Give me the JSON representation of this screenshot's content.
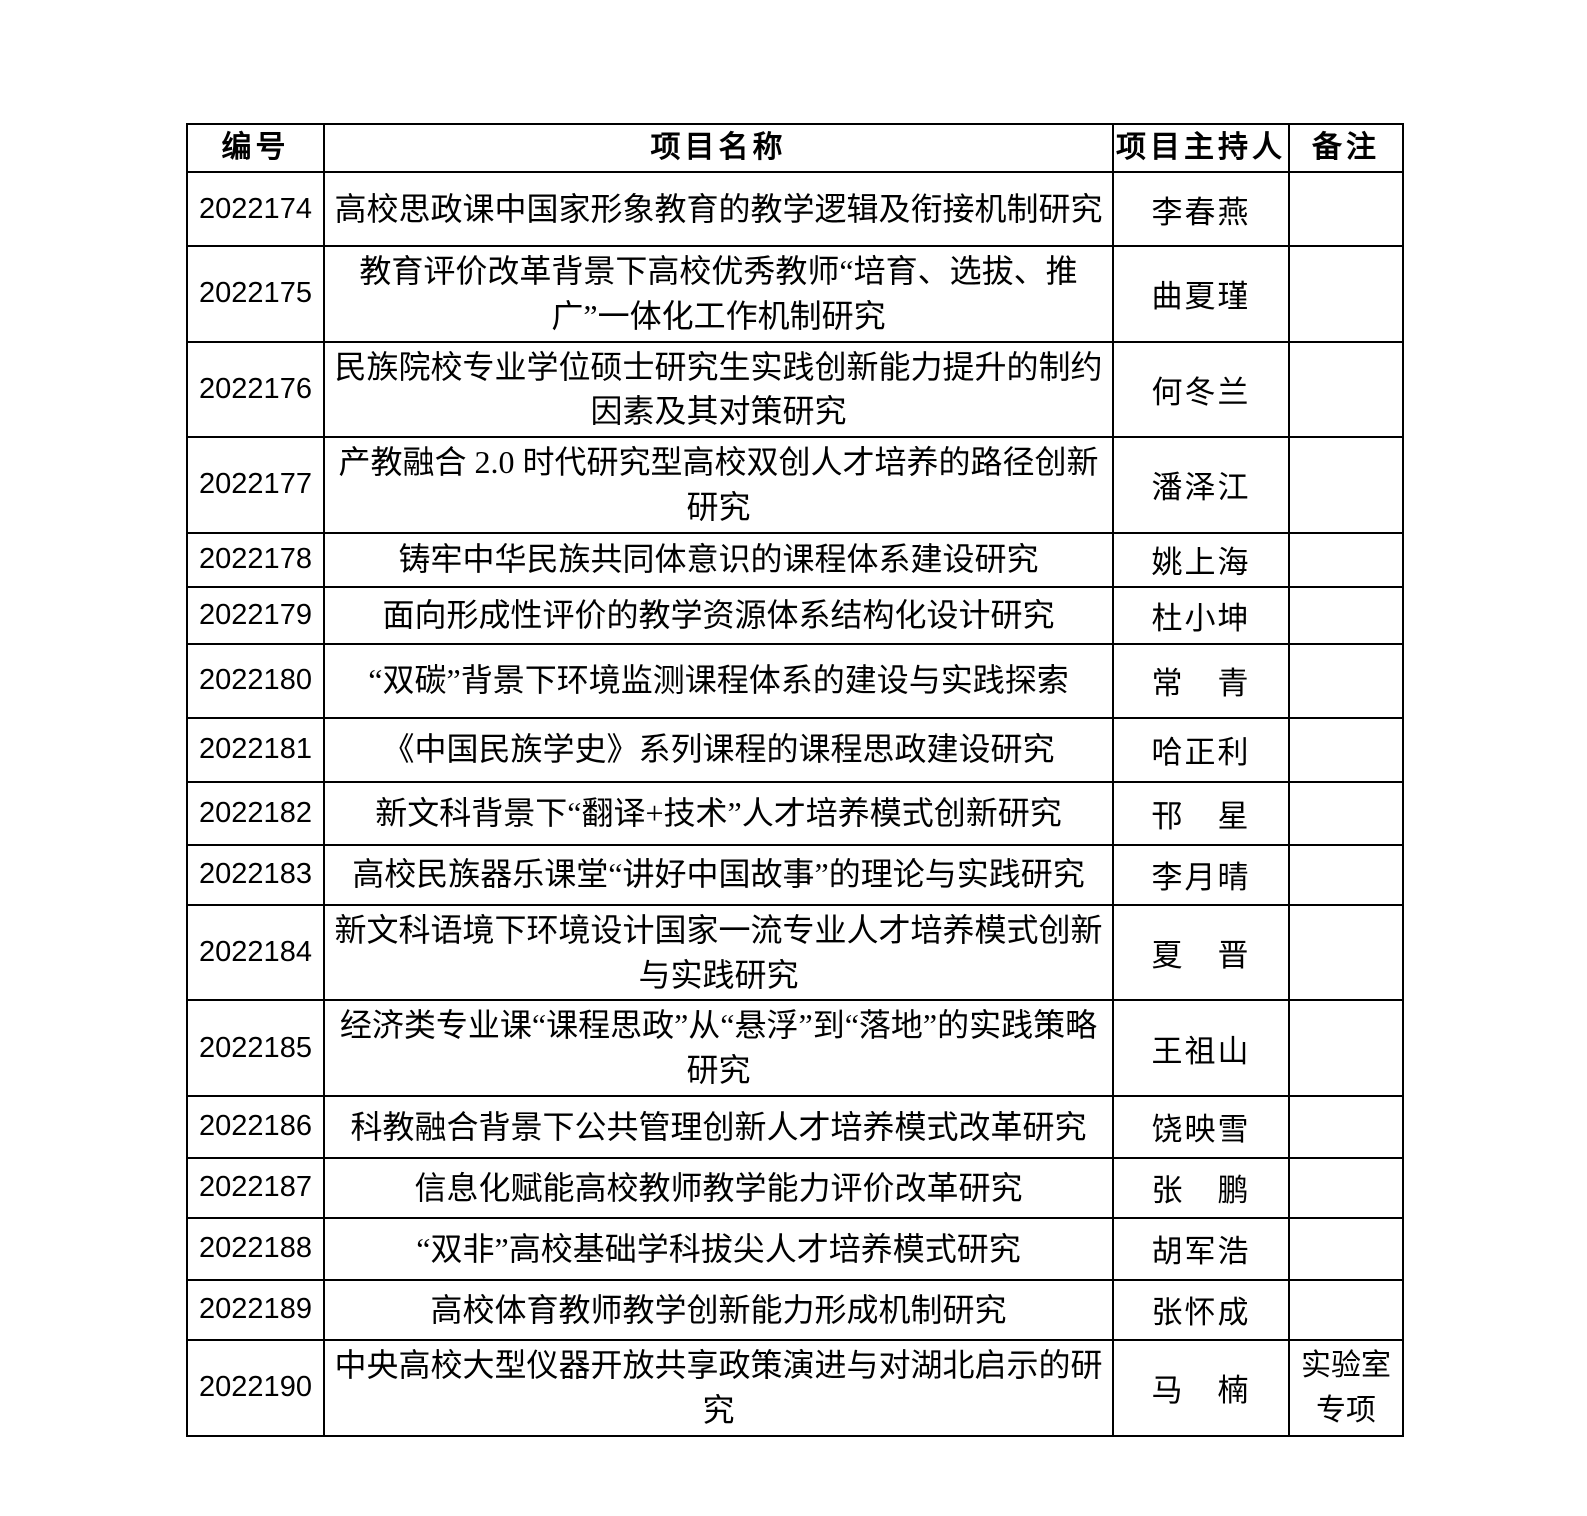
{
  "page": {
    "background_color": "#ffffff",
    "text_color": "#000000",
    "table_border_color": "#000000"
  },
  "table": {
    "headers": {
      "id": "编号",
      "name": "项目名称",
      "leader": "项目主持人",
      "remark": "备注"
    },
    "rows": [
      {
        "id": "2022174",
        "name": "高校思政课中国家形象教育的教学逻辑及衔接机制研究",
        "leader": "李春燕",
        "remark": ""
      },
      {
        "id": "2022175",
        "name": "教育评价改革背景下高校优秀教师“培育、选拔、推广”一体化工作机制研究",
        "leader": "曲夏瑾",
        "remark": ""
      },
      {
        "id": "2022176",
        "name": "民族院校专业学位硕士研究生实践创新能力提升的制约因素及其对策研究",
        "leader": "何冬兰",
        "remark": ""
      },
      {
        "id": "2022177",
        "name": "产教融合 2.0 时代研究型高校双创人才培养的路径创新研究",
        "leader": "潘泽江",
        "remark": ""
      },
      {
        "id": "2022178",
        "name": "铸牢中华民族共同体意识的课程体系建设研究",
        "leader": "姚上海",
        "remark": ""
      },
      {
        "id": "2022179",
        "name": "面向形成性评价的教学资源体系结构化设计研究",
        "leader": "杜小坤",
        "remark": ""
      },
      {
        "id": "2022180",
        "name": "“双碳”背景下环境监测课程体系的建设与实践探索",
        "leader": "常　青",
        "remark": ""
      },
      {
        "id": "2022181",
        "name": "《中国民族学史》系列课程的课程思政建设研究",
        "leader": "哈正利",
        "remark": ""
      },
      {
        "id": "2022182",
        "name": "新文科背景下“翻译+技术”人才培养模式创新研究",
        "leader": "邗　星",
        "remark": ""
      },
      {
        "id": "2022183",
        "name": "高校民族器乐课堂“讲好中国故事”的理论与实践研究",
        "leader": "李月晴",
        "remark": ""
      },
      {
        "id": "2022184",
        "name": "新文科语境下环境设计国家一流专业人才培养模式创新与实践研究",
        "leader": "夏　晋",
        "remark": ""
      },
      {
        "id": "2022185",
        "name": "经济类专业课“课程思政”从“悬浮”到“落地”的实践策略研究",
        "leader": "王祖山",
        "remark": ""
      },
      {
        "id": "2022186",
        "name": "科教融合背景下公共管理创新人才培养模式改革研究",
        "leader": "饶映雪",
        "remark": ""
      },
      {
        "id": "2022187",
        "name": "信息化赋能高校教师教学能力评价改革研究",
        "leader": "张　鹏",
        "remark": ""
      },
      {
        "id": "2022188",
        "name": "“双非”高校基础学科拔尖人才培养模式研究",
        "leader": "胡军浩",
        "remark": ""
      },
      {
        "id": "2022189",
        "name": "高校体育教师教学创新能力形成机制研究",
        "leader": "张怀成",
        "remark": ""
      },
      {
        "id": "2022190",
        "name": "中央高校大型仪器开放共享政策演进与对湖北启示的研究",
        "leader": "马　楠",
        "remark": "实验室专项"
      }
    ]
  }
}
